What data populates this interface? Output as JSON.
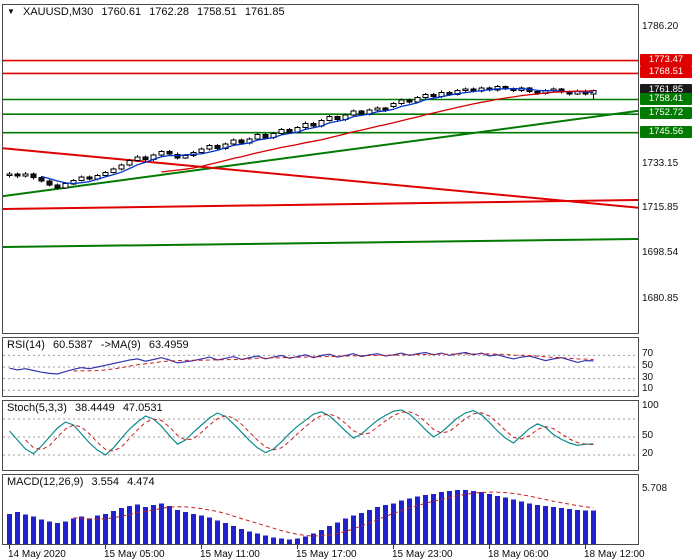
{
  "main_header": {
    "expander": "▼",
    "symbol": "XAUUSD,M30",
    "open": "1760.61",
    "high": "1762.28",
    "low": "1758.51",
    "close": "1761.85"
  },
  "indicators": {
    "rsi": {
      "name": "RSI(14)",
      "value": "60.5387",
      "signal_name": "->MA(9)",
      "signal_value": "63.4959"
    },
    "stoch": {
      "name": "Stoch(5,3,3)",
      "k_value": "38.4449",
      "d_value": "47.0531"
    },
    "macd": {
      "name": "MACD(12,26,9)",
      "value": "3.554",
      "signal_value": "4.474"
    }
  },
  "time_axis": {
    "labels": [
      {
        "text": "14 May 2020",
        "bar": 0
      },
      {
        "text": "15 May 05:00",
        "bar": 12
      },
      {
        "text": "15 May 11:00",
        "bar": 24
      },
      {
        "text": "15 May 17:00",
        "bar": 36
      },
      {
        "text": "15 May 23:00",
        "bar": 48
      },
      {
        "text": "18 May 06:00",
        "bar": 60
      },
      {
        "text": "18 May 12:00",
        "bar": 72
      }
    ]
  },
  "chart_data": [
    {
      "type": "candlestick",
      "title": "XAUUSD,M30",
      "y_range": [
        1668,
        1795
      ],
      "colors": {
        "up": "#ffffff",
        "down": "#111111",
        "outline": "#000000"
      },
      "axis_labels": [
        {
          "text": "1786.20",
          "value": 1786.2
        },
        {
          "text": "1733.15",
          "value": 1733.15
        },
        {
          "text": "1715.85",
          "value": 1715.85
        },
        {
          "text": "1698.54",
          "value": 1698.54
        },
        {
          "text": "1680.85",
          "value": 1680.85
        }
      ],
      "levels": [
        {
          "badge": "1773.47",
          "value": 1773.47,
          "color": "#e00000",
          "kind": "resistance",
          "line": true
        },
        {
          "badge": "1768.51",
          "value": 1768.51,
          "color": "#e00000",
          "kind": "resistance",
          "line": true
        },
        {
          "badge": "1761.85",
          "value": 1761.85,
          "color": "#1a1a1a",
          "kind": "last-price",
          "line": false
        },
        {
          "badge": "1758.41",
          "value": 1758.41,
          "color": "#007a00",
          "kind": "support",
          "line": true
        },
        {
          "badge": "1752.72",
          "value": 1752.72,
          "color": "#007a00",
          "kind": "support",
          "line": true
        },
        {
          "badge": "1745.56",
          "value": 1745.56,
          "color": "#007a00",
          "kind": "support",
          "line": true
        }
      ],
      "trend_lines": [
        {
          "name": "rising-green-trendline",
          "from_price": 1721.0,
          "to_price": 1754.0,
          "color": "#007a00",
          "width": 2
        },
        {
          "name": "falling-red-ma",
          "from_price": 1739.5,
          "to_price": 1716.5,
          "color": "#e00000",
          "width": 2
        },
        {
          "name": "flat-red-line",
          "from_price": 1716.0,
          "to_price": 1719.5,
          "color": "#e00000",
          "width": 2
        },
        {
          "name": "lower-green-ma",
          "from_price": 1701.3,
          "to_price": 1704.4,
          "color": "#007a00",
          "width": 2
        }
      ],
      "ma_overlays": [
        {
          "period": 5,
          "color": "#0033cc"
        },
        {
          "period": 20,
          "color": "#d40000"
        }
      ],
      "candles": [
        [
          1728.9,
          1730.3,
          1728.2,
          1729.5
        ],
        [
          1729.5,
          1730.1,
          1728.1,
          1728.8
        ],
        [
          1728.8,
          1730.4,
          1728.3,
          1729.6
        ],
        [
          1729.6,
          1730.2,
          1727.5,
          1728.2
        ],
        [
          1728.2,
          1728.8,
          1726.2,
          1726.9
        ],
        [
          1726.9,
          1727.4,
          1724.7,
          1725.4
        ],
        [
          1725.4,
          1725.9,
          1723.5,
          1724.2
        ],
        [
          1724.2,
          1726.4,
          1723.7,
          1725.8
        ],
        [
          1725.8,
          1727.7,
          1725.3,
          1727.1
        ],
        [
          1727.1,
          1729.0,
          1726.6,
          1728.4
        ],
        [
          1728.4,
          1729.0,
          1727.0,
          1727.6
        ],
        [
          1727.6,
          1729.6,
          1727.1,
          1729.0
        ],
        [
          1729.0,
          1730.8,
          1728.5,
          1730.2
        ],
        [
          1730.2,
          1732.1,
          1729.7,
          1731.5
        ],
        [
          1731.5,
          1733.6,
          1731.0,
          1733.0
        ],
        [
          1733.0,
          1735.4,
          1732.5,
          1734.8
        ],
        [
          1734.8,
          1736.9,
          1734.3,
          1736.2
        ],
        [
          1736.2,
          1736.8,
          1734.5,
          1735.1
        ],
        [
          1735.1,
          1737.5,
          1734.6,
          1736.9
        ],
        [
          1736.9,
          1738.9,
          1736.4,
          1738.3
        ],
        [
          1738.3,
          1738.9,
          1736.6,
          1737.2
        ],
        [
          1737.2,
          1737.8,
          1735.2,
          1735.8
        ],
        [
          1735.8,
          1737.3,
          1735.3,
          1736.7
        ],
        [
          1736.7,
          1738.5,
          1736.2,
          1737.9
        ],
        [
          1737.9,
          1739.8,
          1737.4,
          1739.2
        ],
        [
          1739.2,
          1741.2,
          1738.7,
          1740.6
        ],
        [
          1740.6,
          1741.1,
          1738.8,
          1739.4
        ],
        [
          1739.4,
          1741.8,
          1738.9,
          1741.2
        ],
        [
          1741.2,
          1743.4,
          1740.7,
          1742.8
        ],
        [
          1742.8,
          1743.3,
          1740.9,
          1741.5
        ],
        [
          1741.5,
          1743.7,
          1741.0,
          1743.1
        ],
        [
          1743.1,
          1745.5,
          1742.6,
          1744.9
        ],
        [
          1744.9,
          1745.4,
          1743.0,
          1743.6
        ],
        [
          1743.6,
          1745.8,
          1743.1,
          1745.2
        ],
        [
          1745.2,
          1747.4,
          1744.7,
          1746.8
        ],
        [
          1746.8,
          1747.3,
          1745.1,
          1745.7
        ],
        [
          1745.7,
          1748.1,
          1745.2,
          1747.5
        ],
        [
          1747.5,
          1749.8,
          1747.0,
          1749.2
        ],
        [
          1749.2,
          1749.7,
          1747.5,
          1748.1
        ],
        [
          1748.1,
          1750.9,
          1747.6,
          1750.3
        ],
        [
          1750.3,
          1752.4,
          1749.8,
          1751.8
        ],
        [
          1751.8,
          1752.3,
          1750.0,
          1750.6
        ],
        [
          1750.6,
          1753.0,
          1750.1,
          1752.4
        ],
        [
          1752.4,
          1754.5,
          1751.9,
          1753.9
        ],
        [
          1753.9,
          1754.4,
          1752.1,
          1752.7
        ],
        [
          1752.7,
          1754.9,
          1752.2,
          1754.3
        ],
        [
          1754.3,
          1755.7,
          1753.8,
          1755.1
        ],
        [
          1755.1,
          1755.6,
          1753.6,
          1754.2
        ],
        [
          1755.8,
          1757.4,
          1755.1,
          1756.8
        ],
        [
          1756.8,
          1758.8,
          1756.3,
          1758.2
        ],
        [
          1758.2,
          1758.8,
          1756.8,
          1757.4
        ],
        [
          1757.4,
          1759.7,
          1756.9,
          1759.1
        ],
        [
          1759.1,
          1760.9,
          1758.6,
          1760.3
        ],
        [
          1760.3,
          1760.9,
          1758.9,
          1759.5
        ],
        [
          1759.5,
          1761.8,
          1759.0,
          1761.2
        ],
        [
          1761.2,
          1761.7,
          1759.8,
          1760.4
        ],
        [
          1760.4,
          1762.4,
          1759.9,
          1761.8
        ],
        [
          1761.8,
          1763.1,
          1761.3,
          1762.5
        ],
        [
          1762.5,
          1763.0,
          1761.1,
          1761.7
        ],
        [
          1761.7,
          1763.5,
          1761.2,
          1762.9
        ],
        [
          1762.9,
          1763.4,
          1761.5,
          1762.1
        ],
        [
          1762.1,
          1764.0,
          1761.6,
          1763.4
        ],
        [
          1763.4,
          1763.9,
          1762.0,
          1762.6
        ],
        [
          1762.6,
          1763.1,
          1761.3,
          1761.9
        ],
        [
          1761.9,
          1763.4,
          1761.4,
          1762.8
        ],
        [
          1762.8,
          1763.3,
          1760.9,
          1761.5
        ],
        [
          1761.5,
          1762.0,
          1760.2,
          1760.8
        ],
        [
          1760.8,
          1762.5,
          1760.3,
          1761.9
        ],
        [
          1761.9,
          1763.0,
          1761.4,
          1762.4
        ],
        [
          1762.4,
          1762.9,
          1760.7,
          1761.3
        ],
        [
          1761.3,
          1761.8,
          1760.0,
          1760.6
        ],
        [
          1760.6,
          1762.3,
          1760.1,
          1761.7
        ],
        [
          1761.7,
          1762.2,
          1760.0,
          1760.6
        ],
        [
          1760.61,
          1762.28,
          1758.51,
          1761.85
        ]
      ]
    },
    {
      "type": "line",
      "name": "RSI",
      "y_range": [
        0,
        100
      ],
      "grid_levels": [
        70,
        50,
        30,
        10
      ],
      "axis_labels": [
        {
          "text": "70",
          "value": 70
        },
        {
          "text": "50",
          "value": 50
        },
        {
          "text": "30",
          "value": 30
        },
        {
          "text": "10",
          "value": 10
        }
      ],
      "line_color": "#3535ad",
      "signal": {
        "color": "#c81e1e",
        "period": 9,
        "style": "dashed"
      },
      "values": [
        48,
        45,
        47,
        44,
        41,
        39,
        38,
        42,
        46,
        49,
        47,
        50,
        53,
        56,
        59,
        62,
        64,
        60,
        63,
        66,
        62,
        57,
        59,
        61,
        64,
        67,
        62,
        65,
        68,
        63,
        66,
        69,
        64,
        67,
        70,
        65,
        68,
        71,
        66,
        70,
        72,
        67,
        70,
        73,
        68,
        71,
        73,
        69,
        71,
        74,
        70,
        73,
        75,
        71,
        74,
        70,
        73,
        75,
        71,
        74,
        69,
        71,
        67,
        64,
        67,
        69,
        65,
        61,
        64,
        66,
        62,
        58,
        61,
        60.5
      ]
    },
    {
      "type": "line",
      "name": "Stochastic",
      "y_range": [
        -5,
        110
      ],
      "grid_levels": [
        80,
        50,
        20
      ],
      "axis_labels": [
        {
          "text": "100",
          "value": 100
        },
        {
          "text": "50",
          "value": 50
        },
        {
          "text": "20",
          "value": 20
        }
      ],
      "line_color": "#0d8c8c",
      "signal": {
        "color": "#c81e1e",
        "period": 3,
        "style": "dashed"
      },
      "values": [
        60,
        45,
        30,
        22,
        35,
        50,
        65,
        75,
        70,
        55,
        40,
        28,
        20,
        32,
        48,
        63,
        75,
        85,
        80,
        68,
        52,
        38,
        45,
        58,
        70,
        82,
        90,
        84,
        72,
        58,
        44,
        32,
        24,
        30,
        42,
        56,
        68,
        78,
        88,
        92,
        85,
        73,
        60,
        48,
        55,
        67,
        78,
        86,
        93,
        95,
        88,
        76,
        62,
        50,
        58,
        70,
        82,
        90,
        94,
        87,
        74,
        60,
        48,
        40,
        52,
        64,
        72,
        66,
        54,
        46,
        40,
        36,
        38,
        38.4
      ]
    },
    {
      "type": "histogram",
      "name": "MACD",
      "y_range": [
        0,
        7.3
      ],
      "grid_levels": [],
      "axis_labels": [
        {
          "text": "5.708",
          "value": 5.708
        }
      ],
      "bar_color": "#2121cd",
      "signal": {
        "color": "#c81e1e",
        "period": 9,
        "style": "dashed"
      },
      "values": [
        3.2,
        3.4,
        3.1,
        2.9,
        2.6,
        2.4,
        2.2,
        2.4,
        2.7,
        2.9,
        2.7,
        3.0,
        3.2,
        3.5,
        3.8,
        4.0,
        4.2,
        3.9,
        4.1,
        4.3,
        4.0,
        3.6,
        3.4,
        3.2,
        3.0,
        2.8,
        2.5,
        2.2,
        1.9,
        1.6,
        1.3,
        1.1,
        0.9,
        0.7,
        0.6,
        0.5,
        0.6,
        0.8,
        1.1,
        1.5,
        1.9,
        2.3,
        2.7,
        3.0,
        3.3,
        3.6,
        3.9,
        4.1,
        4.3,
        4.6,
        4.8,
        5.0,
        5.2,
        5.3,
        5.5,
        5.6,
        5.7,
        5.7,
        5.6,
        5.5,
        5.3,
        5.1,
        4.9,
        4.7,
        4.5,
        4.3,
        4.1,
        4.0,
        3.9,
        3.8,
        3.7,
        3.6,
        3.55,
        3.554
      ]
    }
  ]
}
